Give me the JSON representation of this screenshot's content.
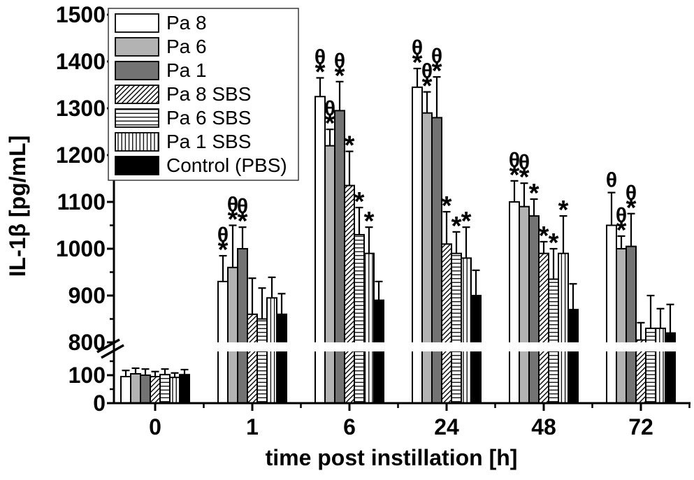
{
  "figure_title": "",
  "colors": {
    "axis": "#000000",
    "bar_outline": "#000000",
    "white_fill": "#ffffff",
    "lightgray_fill": "#b3b3b3",
    "darkgray_fill": "#737373",
    "black_fill": "#000000"
  },
  "chart_data": {
    "type": "bar",
    "title": "",
    "xlabel": "time post instillation [h]",
    "ylabel": "IL-1β [pg/mL]",
    "categories": [
      "0",
      "1",
      "6",
      "24",
      "48",
      "72"
    ],
    "y_axis": {
      "upper_ticks": [
        800,
        900,
        1000,
        1100,
        1200,
        1300,
        1400,
        1500
      ],
      "upper_minor_ticks": [
        850,
        950,
        1050,
        1150,
        1250,
        1350,
        1450
      ],
      "lower_ticks": [
        0,
        100
      ],
      "lower_minor_ticks": [
        50,
        150
      ],
      "break_between": [
        150,
        800
      ],
      "ylim_upper": [
        800,
        1500
      ],
      "ylim_lower": [
        0,
        150
      ]
    },
    "legend_position": "top-left",
    "grid": false,
    "error_bars": "upper-only",
    "significance_symbols": {
      "theta": "θ",
      "star": "*"
    },
    "series": [
      {
        "name": "Pa 8",
        "fill": "white",
        "values": [
          95,
          930,
          1325,
          1345,
          1100,
          1050
        ],
        "errors": [
          22,
          55,
          40,
          40,
          45,
          70
        ],
        "annotations": [
          "",
          "θ*",
          "θ*",
          "θ*",
          "θ*",
          "θ"
        ]
      },
      {
        "name": "Pa 6",
        "fill": "lightgray",
        "values": [
          105,
          960,
          1220,
          1290,
          1090,
          1000
        ],
        "errors": [
          20,
          90,
          35,
          45,
          50,
          27
        ],
        "annotations": [
          "",
          "θ*",
          "θ*",
          "θ*",
          "θ*",
          "θ*"
        ]
      },
      {
        "name": "Pa 1",
        "fill": "darkgray",
        "values": [
          100,
          1000,
          1295,
          1280,
          1070,
          1005
        ],
        "errors": [
          22,
          46,
          62,
          87,
          36,
          70
        ],
        "annotations": [
          "",
          "θ*",
          "θ*",
          "θ*",
          "*",
          "θ*"
        ]
      },
      {
        "name": "Pa 8 SBS",
        "fill": "diagonal-hatch",
        "values": [
          95,
          860,
          1135,
          1010,
          990,
          805
        ],
        "errors": [
          18,
          77,
          73,
          69,
          25,
          37
        ],
        "annotations": [
          "",
          "",
          "*",
          "*",
          "*",
          ""
        ]
      },
      {
        "name": "Pa 6 SBS",
        "fill": "horizontal-hatch",
        "values": [
          102,
          850,
          1030,
          990,
          935,
          830
        ],
        "errors": [
          20,
          66,
          58,
          46,
          65,
          70
        ],
        "annotations": [
          "",
          "",
          "*",
          "*",
          "*",
          ""
        ]
      },
      {
        "name": "Pa 1 SBS",
        "fill": "vertical-hatch",
        "values": [
          92,
          895,
          990,
          980,
          990,
          830
        ],
        "errors": [
          16,
          44,
          56,
          66,
          80,
          42
        ],
        "annotations": [
          "",
          "",
          "*",
          "*",
          "*",
          ""
        ]
      },
      {
        "name": "Control (PBS)",
        "fill": "black",
        "values": [
          102,
          860,
          890,
          900,
          870,
          820
        ],
        "errors": [
          18,
          44,
          40,
          54,
          55,
          61
        ],
        "annotations": [
          "",
          "",
          "",
          "",
          "",
          ""
        ]
      }
    ]
  }
}
